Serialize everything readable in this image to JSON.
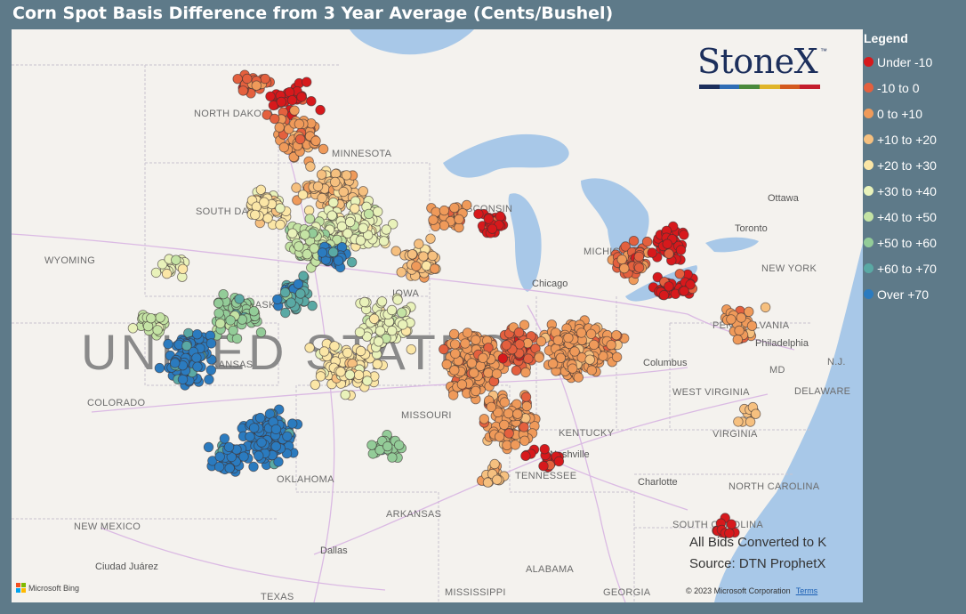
{
  "title": "Corn Spot Basis Difference from 3 Year Average (Cents/Bushel)",
  "logo": {
    "text": "StoneX",
    "tm": "™",
    "bar_colors": [
      "#1c2f5c",
      "#2f6db5",
      "#4a8a3c",
      "#e0b52a",
      "#d45a1f",
      "#c41d2c"
    ]
  },
  "map": {
    "country_label": "UNITED STATES",
    "states": [
      "NORTH DAKOTA",
      "MINNESOTA",
      "SOUTH DAKOTA",
      "WISCONSIN",
      "WYOMING",
      "NEBRASKA",
      "IOWA",
      "COLORADO",
      "KANSAS",
      "MISSOURI",
      "OKLAHOMA",
      "NEW MEXICO",
      "ARKANSAS",
      "TEXAS",
      "MISSISSIPPI",
      "ALABAMA",
      "GEORGIA",
      "TENNESSEE",
      "KENTUCKY",
      "WEST VIRGINIA",
      "VIRGINIA",
      "NORTH CAROLINA",
      "SOUTH CAROLINA",
      "PENNSYLVANIA",
      "NEW YORK",
      "MD",
      "DELAWARE",
      "N.J.",
      "MICHIGAN"
    ],
    "cities": [
      "Ottawa",
      "Toronto",
      "Chicago",
      "Columbus",
      "Philadelphia",
      "Nashville",
      "Charlotte",
      "Dallas",
      "Ciudad Juárez"
    ]
  },
  "notes": {
    "line1": "All Bids Converted to K",
    "line2": "Source: DTN ProphetX"
  },
  "bing_label": "Microsoft Bing",
  "copyright": "© 2023 Microsoft Corporation",
  "terms": "Terms",
  "legend": {
    "title": "Legend",
    "items": [
      {
        "label": "Under -10",
        "color": "#d7191c"
      },
      {
        "label": "-10 to 0",
        "color": "#e4603e"
      },
      {
        "label": "0 to +10",
        "color": "#ef9a5a"
      },
      {
        "label": "+10 to +20",
        "color": "#f6c07f"
      },
      {
        "label": "+20 to +30",
        "color": "#fbe6a6"
      },
      {
        "label": "+30 to +40",
        "color": "#e9f2ba"
      },
      {
        "label": "+40 to +50",
        "color": "#c4e3a4"
      },
      {
        "label": "+50 to +60",
        "color": "#93cc98"
      },
      {
        "label": "+60 to +70",
        "color": "#5aa9a4"
      },
      {
        "label": "Over +70",
        "color": "#2b7bbf"
      }
    ]
  }
}
